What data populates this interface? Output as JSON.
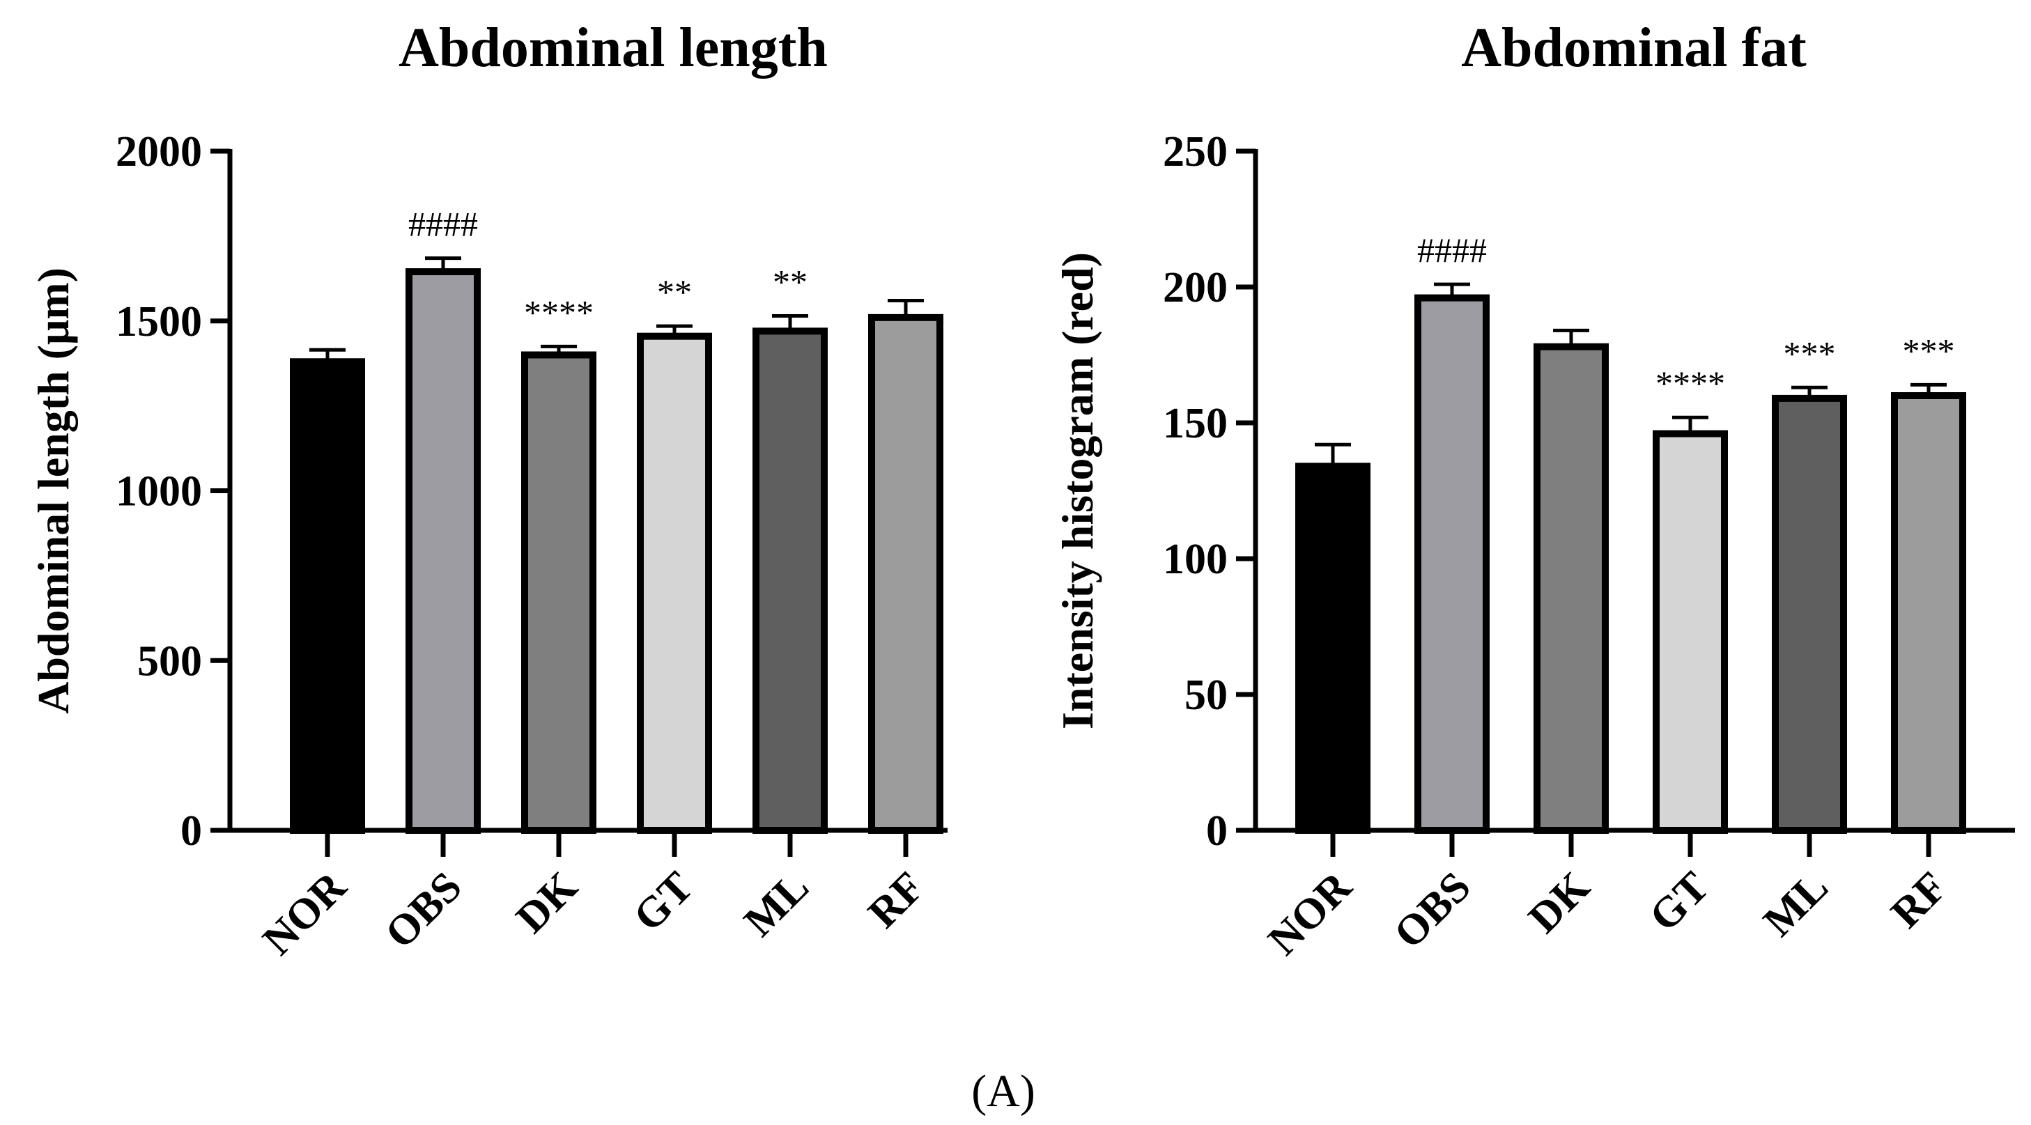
{
  "figure_label": "(A)",
  "chart_data": [
    {
      "type": "bar",
      "title": "Abdominal length",
      "xlabel": "",
      "ylabel": "Abdominal length (μm)",
      "ylim": [
        0,
        2000
      ],
      "yticks": [
        0,
        500,
        1000,
        1500,
        2000
      ],
      "categories": [
        "NOR",
        "OBS",
        "DK",
        "GT",
        "ML",
        "RF"
      ],
      "values": [
        1380,
        1645,
        1400,
        1455,
        1470,
        1510
      ],
      "errors": [
        35,
        40,
        25,
        30,
        45,
        50
      ],
      "annotations": [
        "",
        "####",
        "****",
        "**",
        "**",
        ""
      ],
      "colors": [
        "#000000",
        "#9d9ca2",
        "#7f7f7f",
        "#d5d5d5",
        "#5f5f5f",
        "#9c9c9c"
      ],
      "grid": false
    },
    {
      "type": "bar",
      "title": "Abdominal fat",
      "xlabel": "",
      "ylabel": "Intensity histogram (red)",
      "ylim": [
        0,
        250
      ],
      "yticks": [
        0,
        50,
        100,
        150,
        200,
        250
      ],
      "categories": [
        "NOR",
        "OBS",
        "DK",
        "GT",
        "ML",
        "RF"
      ],
      "values": [
        134,
        196,
        178,
        146,
        159,
        160
      ],
      "errors": [
        8,
        5,
        6,
        6,
        4,
        4
      ],
      "annotations": [
        "",
        "####",
        "",
        "****",
        "***",
        "***"
      ],
      "colors": [
        "#000000",
        "#9d9ca2",
        "#7f7f7f",
        "#d5d5d5",
        "#5f5f5f",
        "#9c9c9c"
      ],
      "grid": false
    }
  ]
}
